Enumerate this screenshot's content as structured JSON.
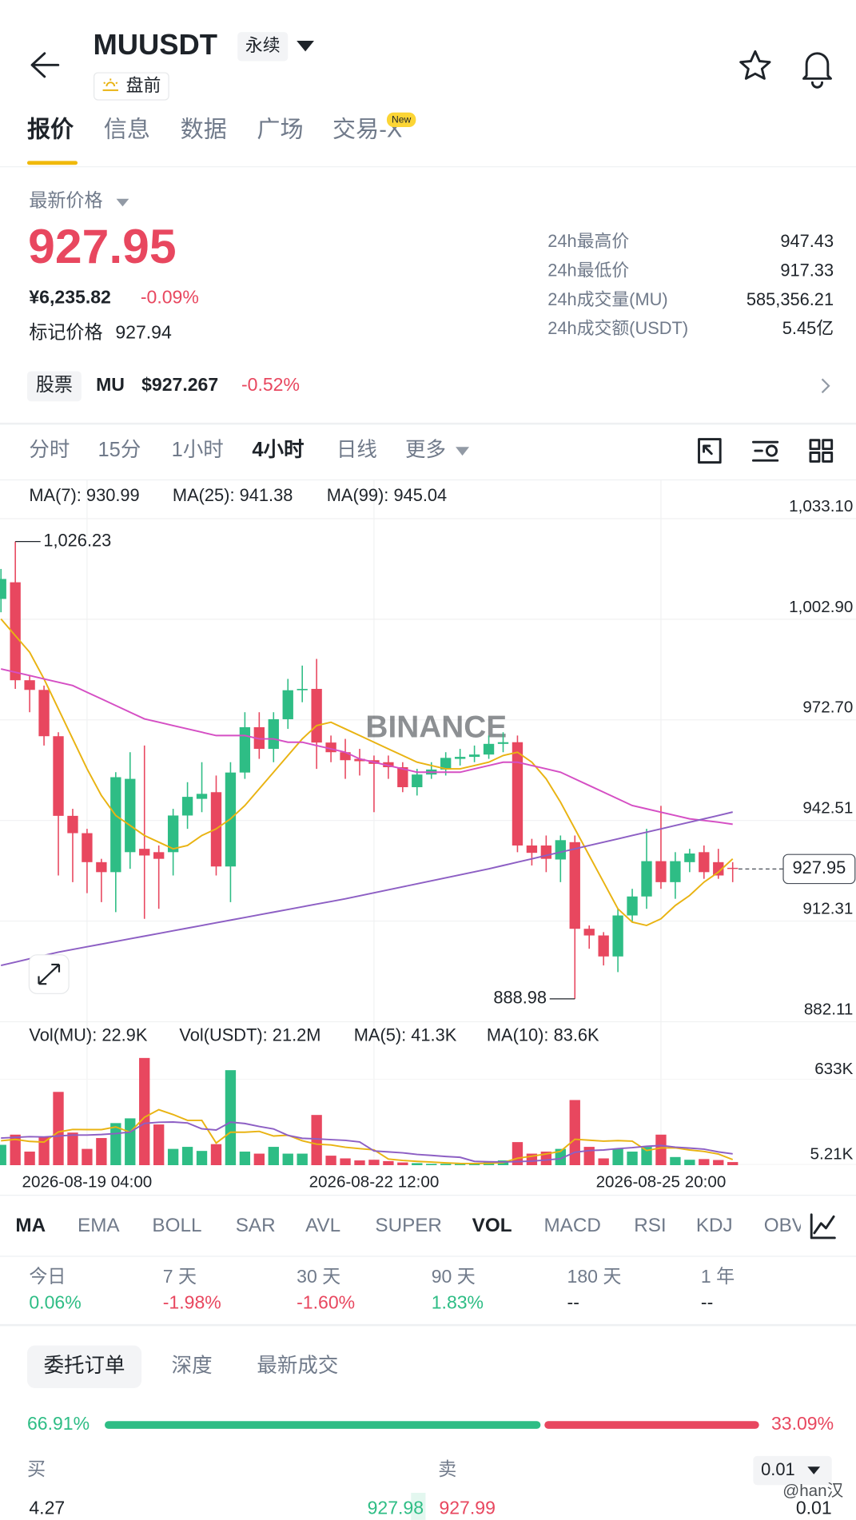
{
  "header": {
    "symbol": "MUUSDT",
    "contract": "永续",
    "status": "盘前"
  },
  "tabs": [
    "报价",
    "信息",
    "数据",
    "广场",
    "交易-X"
  ],
  "new_badge": "New",
  "price": {
    "label": "最新价格",
    "last": "927.95",
    "cny": "¥6,235.82",
    "change": "-0.09%",
    "mark_label": "标记价格",
    "mark": "927.94"
  },
  "stats": [
    {
      "label": "24h最高价",
      "value": "947.43"
    },
    {
      "label": "24h最低价",
      "value": "917.33"
    },
    {
      "label": "24h成交量(MU)",
      "value": "585,356.21"
    },
    {
      "label": "24h成交额(USDT)",
      "value": "5.45亿"
    }
  ],
  "stock": {
    "tag": "股票",
    "symbol": "MU",
    "price": "$927.267",
    "change": "-0.52%"
  },
  "intervals": [
    "分时",
    "15分",
    "1小时",
    "4小时",
    "日线",
    "更多"
  ],
  "chart_data": [
    {
      "type": "candlestick",
      "watermark": "BINANCE",
      "up_color": "#2ebd85",
      "down_color": "#e8475f",
      "open": [
        1009,
        1014,
        984.6,
        981.7,
        967.8,
        943.9,
        938.7,
        930,
        927,
        933,
        934,
        933,
        933,
        944,
        949,
        951,
        928.7,
        956.9,
        970.5,
        964,
        972.9,
        981.6,
        982,
        965.9,
        963,
        961,
        960.6,
        960,
        958.5,
        952.5,
        956.3,
        957.8,
        961,
        961.6,
        962.3,
        965.5,
        966,
        935,
        935,
        930.8,
        936,
        910,
        908,
        901.7,
        914,
        919.7,
        930.3,
        924,
        930,
        933,
        930,
        928.3
      ],
      "high": [
        1018,
        1026.23,
        986,
        983,
        969,
        946,
        940,
        931,
        957,
        963,
        965,
        935,
        946,
        954,
        960,
        956,
        960,
        975,
        975,
        975,
        985,
        989,
        991,
        968,
        967,
        964,
        962,
        962,
        960,
        958,
        960,
        963,
        964,
        965,
        968,
        969,
        968,
        937,
        938,
        938,
        938,
        911,
        909,
        916,
        922,
        940,
        946.9,
        933,
        934,
        935,
        934,
        930
      ],
      "low": [
        1005,
        982,
        975,
        965,
        926,
        924,
        920.7,
        918,
        915,
        928,
        913,
        916,
        926,
        940,
        945,
        926,
        918,
        955,
        961,
        960,
        970,
        978,
        958,
        960,
        955,
        956,
        945,
        955,
        951,
        950,
        955,
        956,
        959,
        960,
        961,
        963,
        933,
        929,
        927,
        924,
        888.98,
        904,
        899,
        897,
        912,
        916,
        922,
        919,
        927,
        925,
        925,
        924
      ],
      "close": [
        1015,
        984.6,
        981.7,
        967.8,
        943.9,
        938.7,
        930,
        927,
        955.5,
        955,
        932,
        931,
        944,
        949.6,
        950.5,
        928.7,
        956.9,
        970.5,
        964,
        972.9,
        981.6,
        982,
        965.9,
        963,
        960.6,
        960.3,
        959.5,
        958.5,
        952.5,
        956.3,
        957.8,
        961.3,
        961.6,
        962.3,
        965.5,
        966,
        935,
        932.8,
        931,
        936.6,
        910,
        908,
        901.7,
        914,
        919.7,
        930.3,
        924,
        930.3,
        932.6,
        927,
        926,
        927.95
      ],
      "series": [
        {
          "name": "MA(7): 930.99",
          "color": "#e9b312",
          "values": [
            1003,
            998,
            993,
            985,
            976,
            967,
            958,
            950,
            944,
            941,
            938,
            936,
            934,
            935,
            938,
            940,
            943,
            947,
            952,
            957,
            962,
            967,
            971,
            972,
            970,
            968,
            966,
            964,
            962,
            960,
            959,
            958,
            958,
            959,
            960,
            962,
            963,
            960,
            955,
            948,
            940,
            932,
            924,
            916,
            912,
            911,
            913,
            917,
            920,
            924,
            927,
            930.99
          ]
        },
        {
          "name": "MA(25): 941.38",
          "color": "#d54fc4",
          "values": [
            988,
            987,
            986,
            985,
            984,
            983,
            981,
            979,
            977,
            975,
            973,
            972,
            971,
            970,
            969,
            968,
            968,
            968,
            967,
            967,
            966,
            966,
            965,
            964,
            963,
            961,
            960,
            959,
            958,
            957,
            957,
            957,
            957,
            958,
            959,
            960,
            960,
            959,
            958,
            957,
            955,
            953,
            951,
            949,
            947,
            946,
            945,
            944,
            943,
            942.5,
            942,
            941.38
          ]
        },
        {
          "name": "MA(99): 945.04",
          "color": "#8d5fc4",
          "values": [
            899,
            900,
            901,
            902,
            903,
            903.8,
            904.6,
            905.4,
            906.2,
            907,
            907.8,
            908.6,
            909.4,
            910.2,
            911,
            911.8,
            912.6,
            913.4,
            914.2,
            915,
            915.8,
            916.6,
            917.4,
            918.2,
            919,
            919.9,
            920.8,
            921.7,
            922.6,
            923.5,
            924.4,
            925.3,
            926.2,
            927.1,
            928,
            929,
            930,
            931,
            932,
            933,
            934,
            935,
            936,
            937,
            938,
            939,
            940,
            941,
            942,
            943,
            944,
            945.04
          ]
        }
      ],
      "ylim": [
        882.11,
        1033.1
      ],
      "yticks": [
        {
          "value": 1033.1,
          "label": "1,033.10"
        },
        {
          "value": 1002.9,
          "label": "1,002.90"
        },
        {
          "value": 972.7,
          "label": "972.70"
        },
        942.51,
        912.31,
        882.11
      ],
      "annotations": [
        {
          "value": 1026.23,
          "label": "1,026.23"
        },
        {
          "value": 888.98,
          "label": "888.98"
        }
      ],
      "last_price": {
        "value": 927.95,
        "label": "927.95"
      }
    },
    {
      "type": "bar",
      "labels": [
        "Vol(MU): 22.9K",
        "Vol(USDT): 21.2M"
      ],
      "categories": [
        null,
        null,
        null,
        null,
        null,
        null,
        "2026-08-19 04:00",
        null,
        null,
        null,
        null,
        null,
        null,
        null,
        null,
        null,
        null,
        null,
        null,
        null,
        null,
        null,
        null,
        null,
        null,
        null,
        "2026-08-22 12:00",
        null,
        null,
        null,
        null,
        null,
        null,
        null,
        null,
        null,
        null,
        null,
        null,
        null,
        null,
        null,
        null,
        null,
        null,
        null,
        "2026-08-25 20:00",
        null,
        null,
        null,
        null,
        null
      ],
      "values": [
        150000,
        225000,
        100000,
        210000,
        540000,
        240000,
        120000,
        200000,
        310000,
        345000,
        790000,
        300000,
        120000,
        135000,
        105000,
        155000,
        700000,
        100000,
        85000,
        135000,
        85000,
        85000,
        370000,
        70000,
        50000,
        35000,
        40000,
        30000,
        20000,
        15000,
        10000,
        10000,
        8000,
        15000,
        25000,
        35000,
        170000,
        85000,
        100000,
        120000,
        480000,
        135000,
        50000,
        120000,
        100000,
        135000,
        225000,
        60000,
        40000,
        45000,
        38000,
        22900
      ],
      "series": [
        {
          "name": "MA(5): 41.3K",
          "color": "#e9b312",
          "values": [
            180000,
            190000,
            175000,
            170000,
            245000,
            263000,
            262000,
            262000,
            282000,
            243000,
            353000,
            409000,
            373000,
            330000,
            330000,
            163000,
            243000,
            243000,
            249000,
            215000,
            221000,
            180000,
            155000,
            149000,
            132000,
            122000,
            113000,
            45000,
            35000,
            28000,
            23000,
            17000,
            13000,
            12000,
            14000,
            19000,
            51000,
            66000,
            83000,
            102000,
            191000,
            184000,
            177000,
            181000,
            177000,
            108000,
            127000,
            128000,
            112000,
            101000,
            82000,
            41300
          ]
        },
        {
          "name": "MA(10): 83.6K",
          "color": "#8d5fc4",
          "values": [
            200000,
            205000,
            210000,
            208000,
            215000,
            222000,
            222000,
            226000,
            233000,
            244000,
            308000,
            316000,
            318000,
            311000,
            268000,
            259000,
            317000,
            307000,
            285000,
            267000,
            220000,
            198000,
            194000,
            188000,
            183000,
            171000,
            105000,
            98000,
            91000,
            79000,
            72000,
            64000,
            58000,
            28000,
            25000,
            24000,
            26000,
            30000,
            38000,
            48000,
            95000,
            108000,
            112000,
            122000,
            129000,
            139000,
            145000,
            133000,
            126000,
            118000,
            98000,
            83600
          ]
        }
      ],
      "ylim": [
        0,
        800000
      ],
      "yticks": [
        {
          "value": 633000,
          "label": "633K"
        },
        {
          "value": 5210,
          "label": "5.21K"
        }
      ]
    }
  ],
  "indicators": [
    "MA",
    "EMA",
    "BOLL",
    "SAR",
    "AVL",
    "SUPER",
    "VOL",
    "MACD",
    "RSI",
    "KDJ",
    "OBV"
  ],
  "performance": [
    {
      "label": "今日",
      "value": "0.06%"
    },
    {
      "label": "7 天",
      "value": "-1.98%"
    },
    {
      "label": "30 天",
      "value": "-1.60%"
    },
    {
      "label": "90 天",
      "value": "1.83%"
    },
    {
      "label": "180 天",
      "value": "--"
    },
    {
      "label": "1 年",
      "value": "--"
    }
  ],
  "order_tabs": [
    "委托订单",
    "深度",
    "最新成交"
  ],
  "ratio": {
    "buy": 66.91,
    "sell": 33.09,
    "buy_label": "66.91%",
    "sell_label": "33.09%"
  },
  "book": {
    "buy_label": "买",
    "sell_label": "卖",
    "precision": "0.01",
    "bid_qty": "4.27",
    "bid": "927.98",
    "ask": "927.99",
    "ask_qty": "0.01"
  },
  "watermark": "@han汉"
}
